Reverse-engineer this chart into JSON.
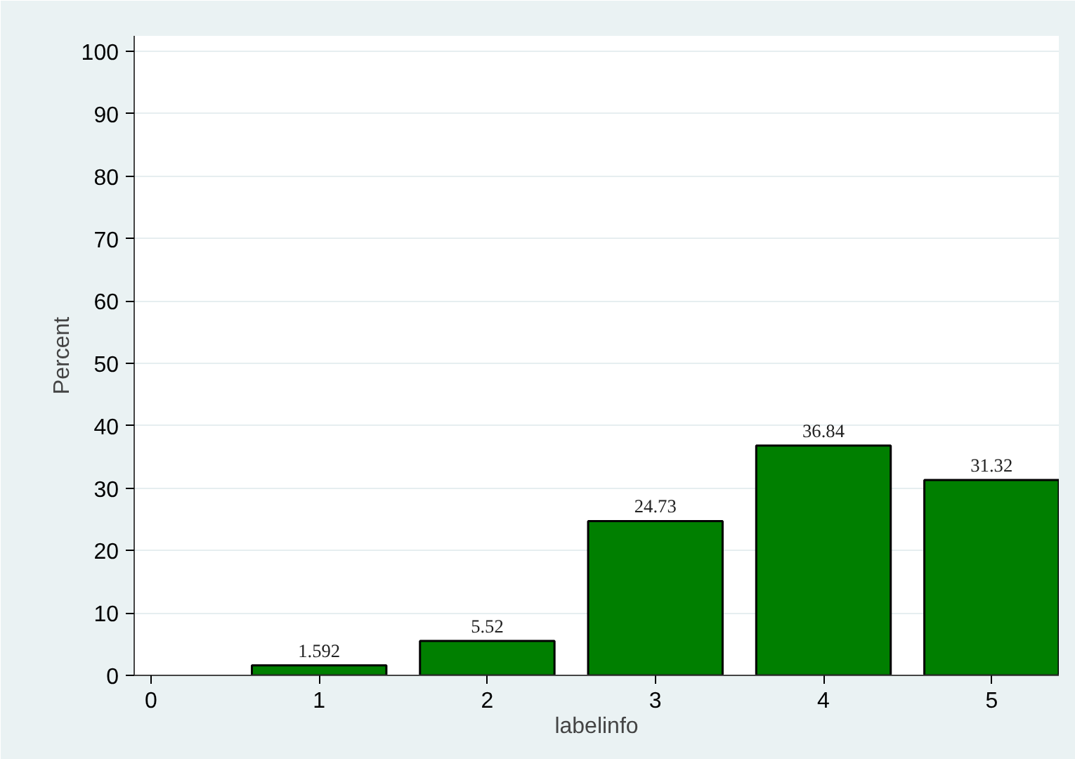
{
  "chart_data": {
    "type": "bar",
    "xlabel": "labelinfo",
    "ylabel": "Percent",
    "x": [
      1,
      2,
      3,
      4,
      5
    ],
    "values": [
      1.592,
      5.52,
      24.73,
      36.84,
      31.32
    ],
    "color": "#007f00",
    "data_labels": true,
    "xlim": [
      -0.1,
      5.4
    ],
    "xticks": [
      0,
      1,
      2,
      3,
      4,
      5
    ],
    "ylim": [
      0,
      102.5
    ],
    "yticks": [
      0,
      10,
      20,
      30,
      40,
      50,
      60,
      70,
      80,
      90,
      100
    ],
    "grid": "y"
  }
}
